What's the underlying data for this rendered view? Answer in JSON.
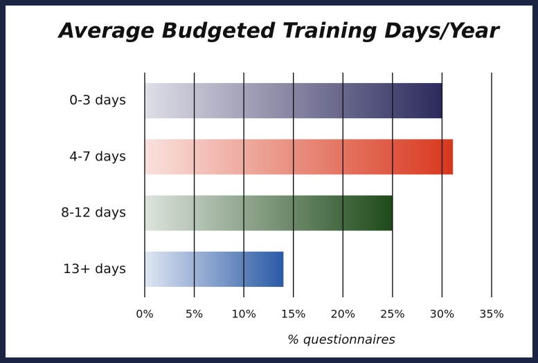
{
  "chart_data": {
    "type": "bar",
    "orientation": "horizontal",
    "title": "Average Budgeted Training Days/Year",
    "categories": [
      "0-3 days",
      "4-7 days",
      "8-12 days",
      "13+ days"
    ],
    "values": [
      30,
      31.1,
      25,
      14
    ],
    "colors": [
      "#2c2a5c",
      "#d8371c",
      "#1e4a1a",
      "#2a5aa6"
    ],
    "xlabel": "% questionnaires",
    "xlim": [
      0,
      35
    ],
    "xticks": [
      {
        "value": 0,
        "label": "0%"
      },
      {
        "value": 5,
        "label": "5%"
      },
      {
        "value": 10,
        "label": "10%"
      },
      {
        "value": 15,
        "label": "15%"
      },
      {
        "value": 20,
        "label": "20%"
      },
      {
        "value": 25,
        "label": "25%"
      },
      {
        "value": 30,
        "label": "30%"
      },
      {
        "value": 35,
        "label": "35%"
      }
    ],
    "grid": true
  }
}
